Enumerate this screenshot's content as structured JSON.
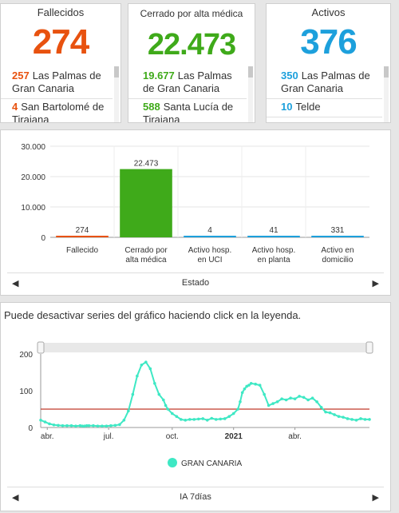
{
  "cards": [
    {
      "title": "Fallecidos",
      "total": "274",
      "color": "#e8520f",
      "items": [
        {
          "num": "257",
          "label": "Las Palmas de Gran Canaria"
        },
        {
          "num": "4",
          "label": "San Bartolomé de Tirajana"
        }
      ]
    },
    {
      "title": "Cerrado por alta médica",
      "total": "22.473",
      "color": "#3faa1a",
      "items": [
        {
          "num": "19.677",
          "label": "Las Palmas de Gran Canaria"
        },
        {
          "num": "588",
          "label": "Santa Lucía de Tirajana"
        }
      ]
    },
    {
      "title": "Activos",
      "total": "376",
      "color": "#1da0dc",
      "items": [
        {
          "num": "350",
          "label": "Las Palmas de Gran Canaria"
        },
        {
          "num": "10",
          "label": "Telde"
        }
      ]
    }
  ],
  "bar_nav": {
    "label": "Estado",
    "left": "◀",
    "right": "▶"
  },
  "line_nav": {
    "label": "IA 7días",
    "left": "◀",
    "right": "▶"
  },
  "hint": "Puede desactivar series del gráfico haciendo click en la leyenda.",
  "chart_data": [
    {
      "type": "bar",
      "categories": [
        "Fallecido",
        "Cerrado por alta médica",
        "Activo hosp. en UCI",
        "Activo hosp. en planta",
        "Activo en domicilio"
      ],
      "category_lines": [
        [
          "Fallecido"
        ],
        [
          "Cerrado por",
          "alta médica"
        ],
        [
          "Activo hosp.",
          "en UCI"
        ],
        [
          "Activo hosp.",
          "en planta"
        ],
        [
          "Activo en",
          "domicilio"
        ]
      ],
      "values": [
        274,
        22473,
        4,
        41,
        331
      ],
      "value_labels": [
        "274",
        "22.473",
        "4",
        "41",
        "331"
      ],
      "colors": [
        "#e8520f",
        "#3faa1a",
        "#1da0dc",
        "#1da0dc",
        "#1da0dc"
      ],
      "ylim": [
        0,
        30000
      ],
      "yticks": [
        {
          "v": 0,
          "t": "0"
        },
        {
          "v": 10000,
          "t": "10.000"
        },
        {
          "v": 20000,
          "t": "20.000"
        },
        {
          "v": 30000,
          "t": "30.000"
        }
      ],
      "grid": true
    },
    {
      "type": "line",
      "series": [
        {
          "name": "GRAN CANARIA",
          "color": "#3ee8c4",
          "x": [
            0,
            2,
            4,
            6,
            8,
            10,
            12,
            14,
            16,
            18,
            19,
            20,
            21,
            22,
            24,
            26,
            28,
            30,
            32,
            34,
            36,
            38,
            40,
            42,
            44,
            46,
            48,
            50,
            52,
            54,
            56,
            57,
            58,
            60,
            62,
            64,
            66,
            68,
            70,
            72,
            74,
            76,
            78,
            80,
            82,
            84,
            86,
            88,
            90,
            91,
            92,
            93,
            94,
            95,
            96,
            98,
            100,
            102,
            104,
            106,
            108,
            110,
            112,
            114,
            116,
            118,
            120,
            122,
            124,
            126,
            128,
            130,
            132,
            134,
            136,
            138,
            140,
            142,
            144,
            146,
            148,
            150
          ],
          "values": [
            20,
            15,
            10,
            7,
            6,
            5,
            5,
            5,
            4,
            5,
            4,
            4,
            5,
            5,
            5,
            4,
            4,
            4,
            5,
            6,
            8,
            20,
            45,
            90,
            140,
            170,
            178,
            160,
            120,
            90,
            75,
            60,
            50,
            38,
            30,
            22,
            20,
            22,
            22,
            23,
            24,
            20,
            25,
            22,
            23,
            24,
            30,
            38,
            50,
            70,
            95,
            105,
            112,
            115,
            120,
            118,
            115,
            90,
            60,
            65,
            70,
            78,
            75,
            80,
            78,
            85,
            82,
            75,
            80,
            70,
            55,
            42,
            40,
            35,
            30,
            28,
            24,
            22,
            20,
            24,
            22,
            22
          ]
        }
      ],
      "ylim": [
        0,
        200
      ],
      "yticks": [
        {
          "v": 0,
          "t": "0"
        },
        {
          "v": 100,
          "t": "100"
        },
        {
          "v": 200,
          "t": "200"
        }
      ],
      "xticks": [
        {
          "v": 3,
          "t": "abr.",
          "bold": false
        },
        {
          "v": 31,
          "t": "jul.",
          "bold": false
        },
        {
          "v": 60,
          "t": "oct.",
          "bold": false
        },
        {
          "v": 88,
          "t": "2021",
          "bold": true
        },
        {
          "v": 116,
          "t": "abr.",
          "bold": false
        }
      ],
      "xlim": [
        0,
        150
      ],
      "threshold": 50,
      "threshold_color": "#c0392b",
      "legend": "bottom-center"
    }
  ]
}
